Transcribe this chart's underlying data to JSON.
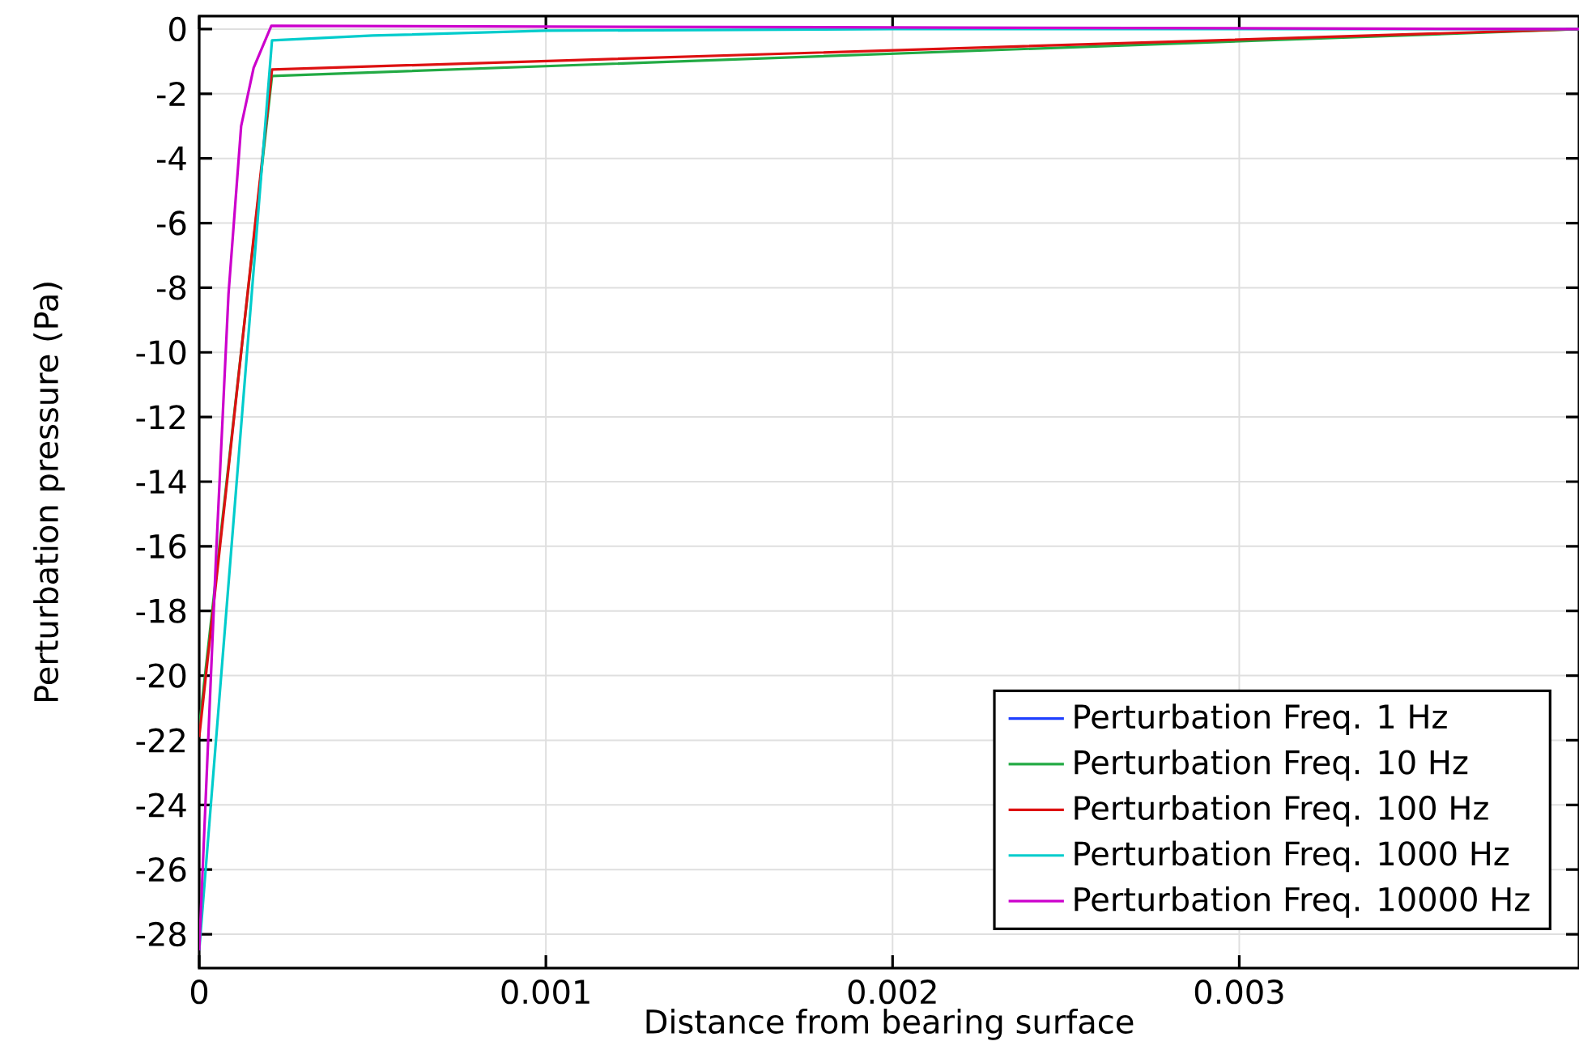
{
  "chart_data": {
    "type": "line",
    "xlabel": "Distance from bearing surface",
    "ylabel": "Perturbation pressure (Pa)",
    "xlim": [
      0,
      0.00398
    ],
    "ylim": [
      -29.05,
      0.4
    ],
    "xticks": [
      0,
      0.001,
      0.002,
      0.003
    ],
    "yticks": [
      0,
      -2,
      -4,
      -6,
      -8,
      -10,
      -12,
      -14,
      -16,
      -18,
      -20,
      -22,
      -24,
      -26,
      -28
    ],
    "grid": true,
    "legend": "bottom right",
    "line_style": "solid",
    "marker": "none",
    "series": [
      {
        "name": "Perturbation Freq. 1 Hz",
        "color": "#1f3fff"
      },
      {
        "name": "Perturbation Freq. 10 Hz",
        "color": "#22aa44",
        "x": [
          0,
          0.00021,
          0.00398
        ],
        "values": [
          -21.6,
          -1.45,
          0
        ]
      },
      {
        "name": "Perturbation Freq. 100 Hz",
        "color": "#dd1111",
        "x": [
          0,
          0.00021,
          0.00398
        ],
        "values": [
          -21.9,
          -1.25,
          0
        ]
      },
      {
        "name": "Perturbation Freq. 1000 Hz",
        "color": "#00cccc",
        "x": [
          0,
          0.00021,
          0.0005,
          0.001,
          0.002,
          0.00398
        ],
        "values": [
          -28.5,
          -0.35,
          -0.2,
          -0.05,
          0,
          0
        ]
      },
      {
        "name": "Perturbation Freq. 10000 Hz",
        "color": "#cc00cc",
        "x": [
          0,
          4.9e-05,
          8.45e-05,
          0.000121,
          0.000157,
          0.000208,
          0.002,
          0.00398
        ],
        "values": [
          -28.5,
          -16.2,
          -8.2,
          -3.0,
          -1.2,
          0.1,
          0.05,
          0
        ]
      }
    ]
  }
}
